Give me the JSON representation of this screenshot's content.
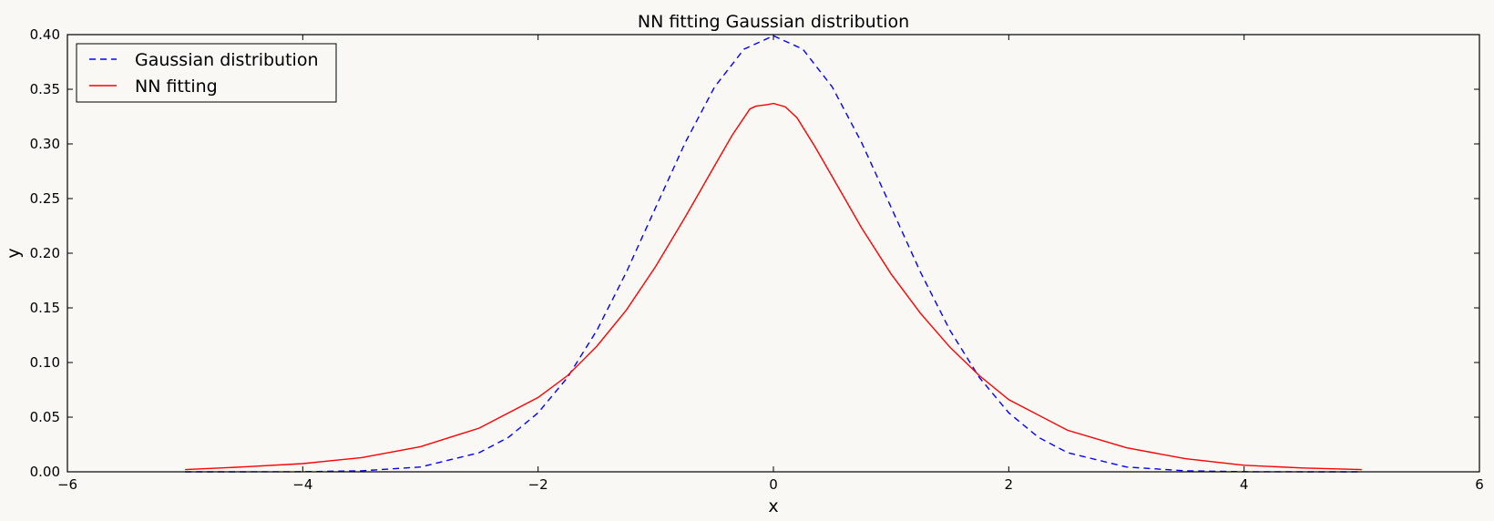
{
  "chart_data": {
    "type": "line",
    "title": "NN fitting Gaussian distribution",
    "xlabel": "x",
    "ylabel": "y",
    "xlim": [
      -6,
      6
    ],
    "ylim": [
      0.0,
      0.4
    ],
    "xticks": [
      -6,
      -4,
      -2,
      0,
      2,
      4,
      6
    ],
    "xtick_labels": [
      "−6",
      "−4",
      "−2",
      "0",
      "2",
      "4",
      "6"
    ],
    "yticks": [
      0.0,
      0.05,
      0.1,
      0.15,
      0.2,
      0.25,
      0.3,
      0.35,
      0.4
    ],
    "ytick_labels": [
      "0.00",
      "0.05",
      "0.10",
      "0.15",
      "0.20",
      "0.25",
      "0.30",
      "0.35",
      "0.40"
    ],
    "grid": false,
    "legend": {
      "placement": "upper left"
    },
    "series": [
      {
        "name": "Gaussian distribution",
        "color": "#0000ff",
        "style": "dashed",
        "x": [
          -5,
          -4.5,
          -4,
          -3.5,
          -3,
          -2.5,
          -2.25,
          -2,
          -1.75,
          -1.5,
          -1.25,
          -1,
          -0.75,
          -0.5,
          -0.25,
          0,
          0.25,
          0.5,
          0.75,
          1,
          1.25,
          1.5,
          1.75,
          2,
          2.25,
          2.5,
          3,
          3.5,
          4,
          4.5,
          5
        ],
        "y": [
          0.0,
          0.0,
          0.0001,
          0.0009,
          0.0044,
          0.0175,
          0.0317,
          0.054,
          0.0863,
          0.1295,
          0.1826,
          0.242,
          0.3011,
          0.3521,
          0.3867,
          0.3989,
          0.3867,
          0.3521,
          0.3011,
          0.242,
          0.1826,
          0.1295,
          0.0863,
          0.054,
          0.0317,
          0.0175,
          0.0044,
          0.0009,
          0.0001,
          0.0,
          0.0
        ]
      },
      {
        "name": "NN fitting",
        "color": "#ff0000",
        "style": "solid",
        "x": [
          -5,
          -4.5,
          -4,
          -3.5,
          -3,
          -2.5,
          -2,
          -1.75,
          -1.5,
          -1.25,
          -1,
          -0.75,
          -0.5,
          -0.35,
          -0.2,
          -0.15,
          -0.05,
          0,
          0.1,
          0.2,
          0.35,
          0.5,
          0.75,
          1,
          1.25,
          1.5,
          1.75,
          2,
          2.5,
          3,
          3.5,
          4,
          4.5,
          5
        ],
        "y": [
          0.002,
          0.0045,
          0.0075,
          0.013,
          0.023,
          0.04,
          0.068,
          0.088,
          0.115,
          0.148,
          0.188,
          0.233,
          0.28,
          0.308,
          0.332,
          0.3345,
          0.336,
          0.337,
          0.334,
          0.324,
          0.298,
          0.27,
          0.223,
          0.181,
          0.145,
          0.114,
          0.088,
          0.066,
          0.038,
          0.022,
          0.012,
          0.006,
          0.0035,
          0.002
        ]
      }
    ]
  }
}
